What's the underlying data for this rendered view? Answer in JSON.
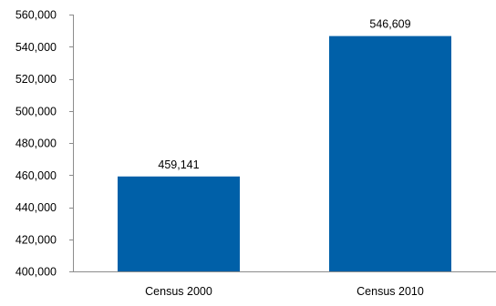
{
  "chart_data": {
    "type": "bar",
    "title": "",
    "xlabel": "",
    "ylabel": "",
    "categories": [
      "Census 2000",
      "Census 2010"
    ],
    "values": [
      459141,
      546609
    ],
    "data_labels": [
      "459,141",
      "546,609"
    ],
    "ylim": [
      400000,
      560000
    ],
    "yticks": [
      400000,
      420000,
      440000,
      460000,
      480000,
      500000,
      520000,
      540000,
      560000
    ],
    "ytick_labels": [
      "400,000",
      "420,000",
      "440,000",
      "460,000",
      "480,000",
      "500,000",
      "520,000",
      "540,000",
      "560,000"
    ],
    "grid": false,
    "legend": "none",
    "bar_color": "#0060a8"
  }
}
